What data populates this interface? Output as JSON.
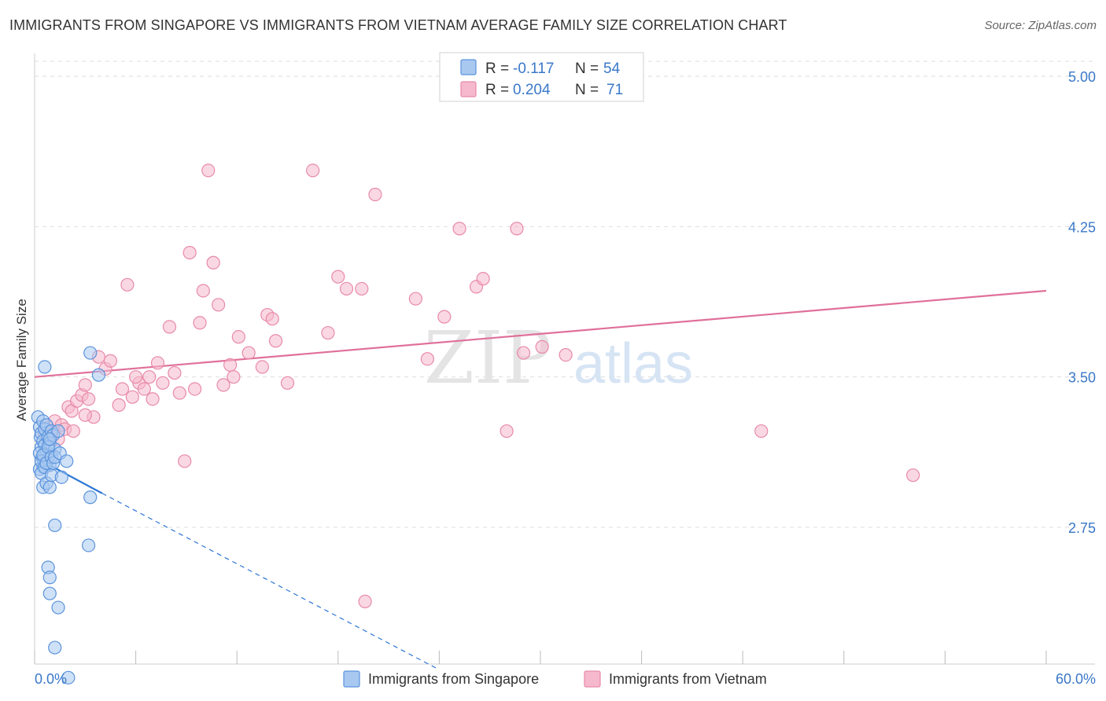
{
  "header": {
    "title": "IMMIGRANTS FROM SINGAPORE VS IMMIGRANTS FROM VIETNAM AVERAGE FAMILY SIZE CORRELATION CHART",
    "source": "Source: ZipAtlas.com"
  },
  "watermark": {
    "zip": "ZIP",
    "atlas": "atlas"
  },
  "colors": {
    "singapore_fill": "#a8c8f0",
    "singapore_stroke": "#5b93dc",
    "singapore_line": "#2b76d6",
    "vietnam_fill": "#f5b8cc",
    "vietnam_stroke": "#e88aa8",
    "vietnam_line": "#e0709a",
    "axis_value": "#3a78c8",
    "grid": "#dddddd"
  },
  "chart_data": {
    "type": "scatter",
    "title": "IMMIGRANTS FROM SINGAPORE VS IMMIGRANTS FROM VIETNAM AVERAGE FAMILY SIZE CORRELATION CHART",
    "xlabel": "",
    "ylabel": "Average Family Size",
    "xlim": [
      0,
      60
    ],
    "ylim": [
      2.0,
      5.1
    ],
    "x_tick_labels": [
      "0.0%",
      "60.0%"
    ],
    "y_ticks": [
      2.75,
      3.5,
      4.25,
      5.0
    ],
    "y_tick_labels": [
      "2.75",
      "3.50",
      "4.25",
      "5.00"
    ],
    "legend_position": "bottom",
    "stats_box": [
      {
        "r_label": "R = ",
        "r_value": "-0.117",
        "n_label": "N = ",
        "n_value": "54"
      },
      {
        "r_label": "R = ",
        "r_value": "0.204",
        "n_label": "N = ",
        "n_value": "71"
      }
    ],
    "series": [
      {
        "name": "Immigrants from Singapore",
        "color": "#5b93dc",
        "trend": {
          "x0": 0,
          "y0": 3.1,
          "x1": 4,
          "y1": 2.92,
          "dash_to_x": 24,
          "dash_to_y": 2.04
        },
        "points": [
          [
            0.2,
            3.3
          ],
          [
            0.3,
            3.25
          ],
          [
            0.35,
            3.2
          ],
          [
            0.4,
            3.15
          ],
          [
            0.45,
            3.1
          ],
          [
            0.5,
            3.05
          ],
          [
            0.55,
            3.08
          ],
          [
            0.6,
            3.12
          ],
          [
            0.4,
            3.22
          ],
          [
            0.5,
            3.18
          ],
          [
            0.6,
            3.16
          ],
          [
            0.7,
            3.13
          ],
          [
            0.8,
            3.09
          ],
          [
            0.9,
            3.06
          ],
          [
            0.3,
            3.04
          ],
          [
            0.4,
            3.02
          ],
          [
            0.5,
            3.28
          ],
          [
            0.6,
            3.24
          ],
          [
            0.7,
            3.26
          ],
          [
            0.8,
            3.2
          ],
          [
            0.9,
            3.17
          ],
          [
            1.0,
            3.23
          ],
          [
            1.1,
            3.21
          ],
          [
            1.2,
            3.14
          ],
          [
            0.3,
            3.12
          ],
          [
            0.4,
            3.08
          ],
          [
            0.5,
            3.11
          ],
          [
            0.6,
            3.05
          ],
          [
            0.7,
            3.07
          ],
          [
            0.8,
            3.15
          ],
          [
            0.9,
            3.19
          ],
          [
            1.0,
            3.1
          ],
          [
            0.6,
            3.55
          ],
          [
            0.5,
            2.95
          ],
          [
            0.7,
            2.97
          ],
          [
            0.9,
            2.95
          ],
          [
            1.0,
            3.01
          ],
          [
            1.1,
            3.07
          ],
          [
            1.2,
            3.1
          ],
          [
            1.4,
            3.23
          ],
          [
            1.5,
            3.12
          ],
          [
            1.6,
            3.0
          ],
          [
            1.9,
            3.08
          ],
          [
            3.3,
            3.62
          ],
          [
            3.8,
            3.51
          ],
          [
            3.3,
            2.9
          ],
          [
            3.2,
            2.66
          ],
          [
            1.2,
            2.76
          ],
          [
            0.8,
            2.55
          ],
          [
            0.9,
            2.5
          ],
          [
            0.9,
            2.42
          ],
          [
            1.4,
            2.35
          ],
          [
            1.2,
            2.15
          ],
          [
            2.0,
            2.0
          ]
        ]
      },
      {
        "name": "Immigrants from Vietnam",
        "color": "#e88aa8",
        "trend": {
          "x0": 0,
          "y0": 3.5,
          "x1": 60,
          "y1": 3.93
        },
        "points": [
          [
            0.6,
            3.22
          ],
          [
            0.8,
            3.25
          ],
          [
            1.0,
            3.21
          ],
          [
            1.2,
            3.28
          ],
          [
            1.4,
            3.19
          ],
          [
            1.6,
            3.26
          ],
          [
            1.8,
            3.24
          ],
          [
            2.0,
            3.35
          ],
          [
            2.2,
            3.33
          ],
          [
            2.5,
            3.38
          ],
          [
            2.8,
            3.41
          ],
          [
            3.0,
            3.46
          ],
          [
            3.2,
            3.39
          ],
          [
            3.5,
            3.3
          ],
          [
            3.8,
            3.6
          ],
          [
            4.2,
            3.54
          ],
          [
            4.5,
            3.58
          ],
          [
            5.0,
            3.36
          ],
          [
            5.2,
            3.44
          ],
          [
            5.5,
            3.96
          ],
          [
            5.8,
            3.4
          ],
          [
            6.2,
            3.47
          ],
          [
            6.5,
            3.44
          ],
          [
            6.8,
            3.5
          ],
          [
            7.0,
            3.39
          ],
          [
            7.3,
            3.57
          ],
          [
            7.6,
            3.47
          ],
          [
            8.0,
            3.75
          ],
          [
            8.3,
            3.52
          ],
          [
            8.6,
            3.42
          ],
          [
            8.9,
            3.08
          ],
          [
            9.2,
            4.12
          ],
          [
            9.5,
            3.44
          ],
          [
            9.8,
            3.77
          ],
          [
            10.0,
            3.93
          ],
          [
            10.3,
            4.53
          ],
          [
            10.6,
            4.07
          ],
          [
            10.9,
            3.86
          ],
          [
            11.2,
            3.46
          ],
          [
            11.6,
            3.56
          ],
          [
            11.8,
            3.5
          ],
          [
            12.1,
            3.7
          ],
          [
            12.7,
            3.62
          ],
          [
            13.5,
            3.55
          ],
          [
            13.8,
            3.81
          ],
          [
            14.1,
            3.79
          ],
          [
            14.3,
            3.68
          ],
          [
            15.0,
            3.47
          ],
          [
            16.5,
            4.53
          ],
          [
            17.4,
            3.72
          ],
          [
            18.0,
            4.0
          ],
          [
            18.5,
            3.94
          ],
          [
            19.4,
            3.94
          ],
          [
            19.6,
            2.38
          ],
          [
            20.2,
            4.41
          ],
          [
            22.6,
            3.89
          ],
          [
            23.3,
            3.59
          ],
          [
            24.3,
            3.8
          ],
          [
            25.2,
            4.24
          ],
          [
            26.2,
            3.95
          ],
          [
            26.6,
            3.99
          ],
          [
            28.0,
            3.23
          ],
          [
            28.6,
            4.24
          ],
          [
            29.0,
            3.62
          ],
          [
            30.1,
            3.65
          ],
          [
            31.5,
            3.61
          ],
          [
            43.1,
            3.23
          ],
          [
            52.1,
            3.01
          ],
          [
            2.3,
            3.23
          ],
          [
            3.0,
            3.31
          ],
          [
            6.0,
            3.5
          ]
        ]
      }
    ]
  }
}
